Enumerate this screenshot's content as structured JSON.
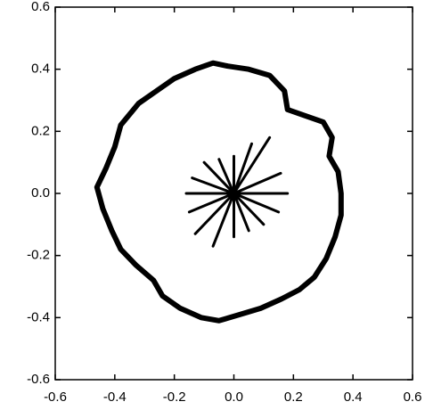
{
  "chart_data": {
    "type": "line",
    "xlim": [
      -0.6,
      0.6
    ],
    "ylim": [
      -0.6,
      0.6
    ],
    "xticks": [
      -0.6,
      -0.4,
      -0.2,
      {
        "value": 0,
        "label": "0.0"
      },
      0.2,
      0.4,
      0.6
    ],
    "yticks": [
      -0.6,
      -0.4,
      -0.2,
      {
        "value": 0,
        "label": "0.0"
      },
      0.2,
      0.4,
      0.6
    ],
    "grid": false,
    "series": [
      {
        "color": "#000000",
        "x": [
          0.36,
          0.35,
          0.32,
          0.33,
          0.3,
          0.24,
          0.18,
          0.17,
          0.12,
          0.05,
          -0.02,
          -0.07,
          -0.13,
          -0.2,
          -0.26,
          -0.32,
          -0.38,
          -0.4,
          -0.43,
          -0.46,
          -0.44,
          -0.41,
          -0.38,
          -0.33,
          -0.27,
          -0.24,
          -0.18,
          -0.11,
          -0.05,
          0.02,
          0.09,
          0.16,
          0.22,
          0.27,
          0.31,
          0.34,
          0.36,
          0.36
        ],
        "values": [
          0.0,
          0.07,
          0.12,
          0.18,
          0.23,
          0.25,
          0.27,
          0.33,
          0.38,
          0.4,
          0.41,
          0.42,
          0.4,
          0.37,
          0.33,
          0.29,
          0.22,
          0.15,
          0.08,
          0.02,
          -0.05,
          -0.12,
          -0.18,
          -0.23,
          -0.28,
          -0.33,
          -0.37,
          -0.4,
          -0.41,
          -0.39,
          -0.37,
          -0.34,
          -0.31,
          -0.27,
          -0.21,
          -0.14,
          -0.07,
          0.0
        ]
      },
      {
        "color": "#000000",
        "x": [
          0,
          0.18,
          0,
          0.157,
          0,
          0.12,
          0,
          0.06,
          0,
          0.0,
          0,
          -0.05,
          0,
          -0.1,
          0,
          -0.14,
          0,
          -0.16,
          0,
          -0.15,
          0,
          -0.13,
          0,
          -0.07,
          0,
          0.0,
          0,
          0.05,
          0,
          0.1,
          0,
          0.15,
          0
        ],
        "values": [
          0,
          0.0,
          0,
          0.065,
          0,
          0.18,
          0,
          0.16,
          0,
          0.12,
          0,
          0.11,
          0,
          0.1,
          0,
          0.05,
          0,
          0.0,
          0,
          -0.06,
          0,
          -0.13,
          0,
          -0.17,
          0,
          -0.14,
          0,
          -0.12,
          0,
          -0.1,
          0,
          -0.06,
          0
        ]
      }
    ]
  }
}
